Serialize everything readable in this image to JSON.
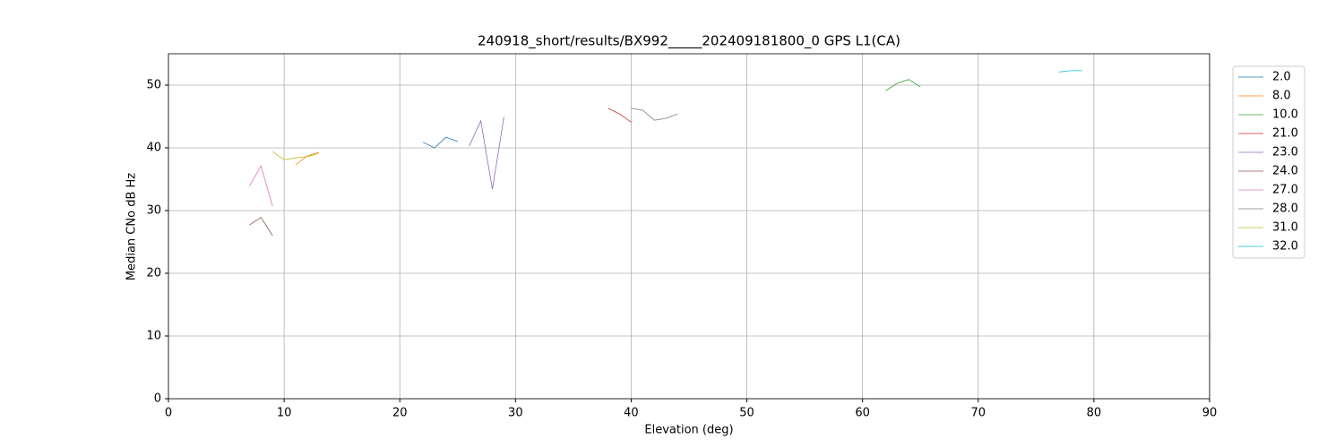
{
  "chart_data": {
    "type": "line",
    "title": "240918_short/results/BX992_____202409181800_0 GPS L1(CA)",
    "x_label": "Elevation (deg)",
    "y_label": "Median CNo dB Hz",
    "xlim": [
      0,
      90
    ],
    "ylim": [
      0,
      55
    ],
    "xticks": [
      0,
      10,
      20,
      30,
      40,
      50,
      60,
      70,
      80,
      90
    ],
    "yticks": [
      0,
      10,
      20,
      30,
      40,
      50
    ],
    "grid": true,
    "legend": "outside-upper-right",
    "series": [
      {
        "name": "2.0",
        "color": "#1f77b4",
        "x": [
          22,
          23,
          24,
          25
        ],
        "values": [
          40.9,
          40.0,
          41.7,
          41.0
        ]
      },
      {
        "name": "8.0",
        "color": "#ff7f0e",
        "x": [
          11,
          12,
          13
        ],
        "values": [
          37.3,
          38.7,
          39.3
        ]
      },
      {
        "name": "10.0",
        "color": "#2ca02c",
        "x": [
          62,
          63,
          64,
          65
        ],
        "values": [
          49.1,
          50.3,
          50.9,
          49.7
        ]
      },
      {
        "name": "21.0",
        "color": "#d62728",
        "x": [
          38,
          39,
          40
        ],
        "values": [
          46.3,
          45.4,
          44.1
        ]
      },
      {
        "name": "23.0",
        "color": "#9467bd",
        "x": [
          26,
          27,
          28,
          29
        ],
        "values": [
          40.3,
          44.3,
          33.4,
          44.9
        ]
      },
      {
        "name": "24.0",
        "color": "#8c564b",
        "x": [
          7,
          8,
          9
        ],
        "values": [
          27.7,
          28.9,
          26.0
        ]
      },
      {
        "name": "27.0",
        "color": "#e377c2",
        "x": [
          7,
          8,
          9
        ],
        "values": [
          33.9,
          37.1,
          30.7
        ]
      },
      {
        "name": "28.0",
        "color": "#7f7f7f",
        "x": [
          40,
          41,
          42,
          43,
          44
        ],
        "values": [
          46.3,
          46.0,
          44.4,
          44.7,
          45.4
        ]
      },
      {
        "name": "31.0",
        "color": "#bcbd22",
        "x": [
          9,
          10,
          11,
          12,
          13
        ],
        "values": [
          39.4,
          38.1,
          38.4,
          38.6,
          39.1
        ]
      },
      {
        "name": "32.0",
        "color": "#17becf",
        "x": [
          77,
          78,
          79
        ],
        "values": [
          52.1,
          52.3,
          52.3
        ]
      }
    ]
  }
}
